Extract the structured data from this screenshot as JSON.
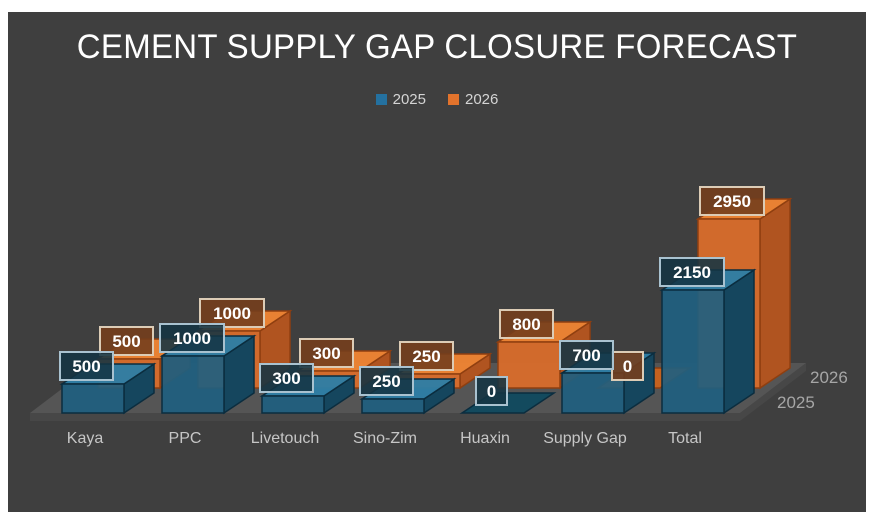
{
  "title": "CEMENT SUPPLY GAP CLOSURE FORECAST",
  "legend": {
    "items": [
      {
        "label": "2025",
        "color": "#2471a0"
      },
      {
        "label": "2026",
        "color": "#e2732c"
      }
    ]
  },
  "colors": {
    "page_margin": "#ffffff",
    "slide_bg": "#3f3f3f",
    "floor": "#555555",
    "floor_edge": "#474747",
    "title_text": "#ffffff",
    "category_text": "#c6c6c6",
    "series_axis_text": "#a6a6a6",
    "label_text": "#ffffff"
  },
  "chart_data": {
    "type": "bar",
    "variant": "3d-clustered",
    "title": "CEMENT SUPPLY GAP CLOSURE FORECAST",
    "categories": [
      "Kaya",
      "PPC",
      "Livetouch",
      "Sino-Zim",
      "Huaxin",
      "Supply Gap",
      "Total"
    ],
    "series": [
      {
        "name": "2025",
        "values": [
          500,
          1000,
          300,
          250,
          0,
          700,
          2150
        ],
        "data_labels": [
          "500",
          "1000",
          "300",
          "250",
          "0",
          "700",
          "2150"
        ],
        "style": {
          "front": "#1f5f80",
          "top": "#2e7ea6",
          "side": "#15465e",
          "stroke": "#0b2d3f",
          "flat": "#134a5e",
          "label_bg": "rgba(20,52,67,0.88)",
          "label_border": "#a9c2d0",
          "legend": "#2471a0"
        }
      },
      {
        "name": "2026",
        "values": [
          500,
          1000,
          300,
          250,
          800,
          0,
          2950
        ],
        "data_labels": [
          "500",
          "1000",
          "300",
          "250",
          "800",
          "0",
          "2950"
        ],
        "style": {
          "front": "#dd6e2a",
          "top": "#ef8433",
          "side": "#b05420",
          "stroke": "#8f3f10",
          "flat": "#c4611f",
          "label_bg": "rgba(116,62,29,0.9)",
          "label_border": "#dcccb6",
          "legend": "#e2732c"
        }
      }
    ],
    "depth_axis_labels": [
      "2025",
      "2026"
    ],
    "data_labels_shown": true,
    "legend_position": "top",
    "grid": false,
    "axes_shown": false
  }
}
